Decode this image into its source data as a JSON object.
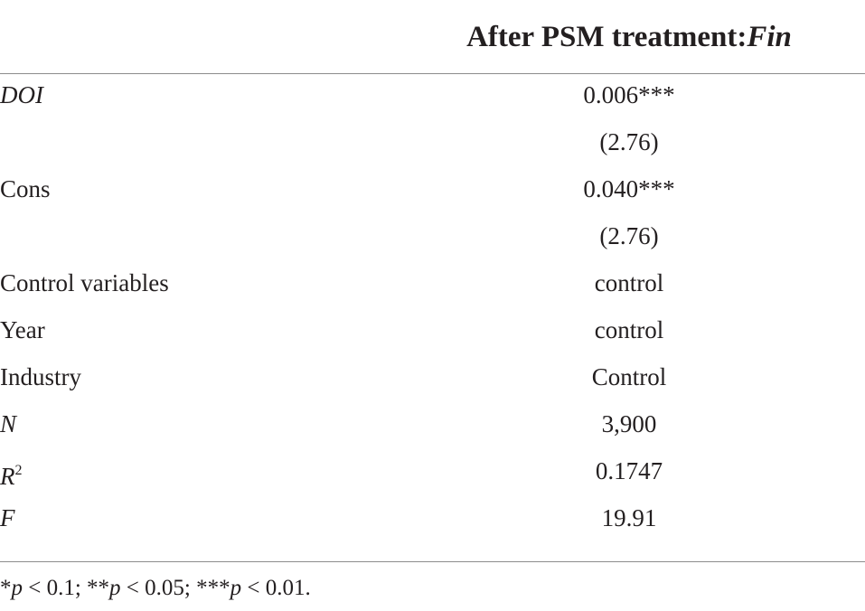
{
  "header": {
    "title_prefix": "After PSM treatment:",
    "title_italic": "Fin"
  },
  "rows": [
    {
      "label": "DOI",
      "value": "0.006***"
    },
    {
      "label": "",
      "value": "(2.76)"
    },
    {
      "label": "Cons",
      "value": "0.040***"
    },
    {
      "label": "",
      "value": "(2.76)"
    },
    {
      "label": "Control variables",
      "value": "control"
    },
    {
      "label": "Year",
      "value": "control"
    },
    {
      "label": "Industry",
      "value": "Control"
    },
    {
      "label": "N",
      "value": "3,900"
    },
    {
      "label": "R",
      "label_sup": "2",
      "value": "0.1747"
    },
    {
      "label": "F",
      "value": "19.91"
    }
  ],
  "footnote": {
    "s1": "*",
    "p": "p",
    "t1": " < 0.1; **",
    "t2": " < 0.05; ***",
    "t3": " < 0.01."
  }
}
